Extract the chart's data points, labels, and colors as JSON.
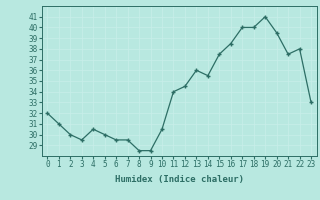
{
  "x": [
    0,
    1,
    2,
    3,
    4,
    5,
    6,
    7,
    8,
    9,
    10,
    11,
    12,
    13,
    14,
    15,
    16,
    17,
    18,
    19,
    20,
    21,
    22,
    23
  ],
  "y": [
    32,
    31,
    30,
    29.5,
    30.5,
    30,
    29.5,
    29.5,
    28.5,
    28.5,
    30.5,
    34,
    34.5,
    36,
    35.5,
    37.5,
    38.5,
    40,
    40,
    41,
    39.5,
    37.5,
    38,
    33
  ],
  "xlabel": "Humidex (Indice chaleur)",
  "xlim": [
    -0.5,
    23.5
  ],
  "ylim": [
    28.0,
    42.0
  ],
  "yticks": [
    29,
    30,
    31,
    32,
    33,
    34,
    35,
    36,
    37,
    38,
    39,
    40,
    41
  ],
  "xticks": [
    0,
    1,
    2,
    3,
    4,
    5,
    6,
    7,
    8,
    9,
    10,
    11,
    12,
    13,
    14,
    15,
    16,
    17,
    18,
    19,
    20,
    21,
    22,
    23
  ],
  "line_color": "#2d6e65",
  "bg_color": "#b8e8e0",
  "grid_color": "#c8eeea",
  "font_color": "#2d6e65",
  "tick_label_fontsize": 5.5,
  "xlabel_fontsize": 6.5
}
